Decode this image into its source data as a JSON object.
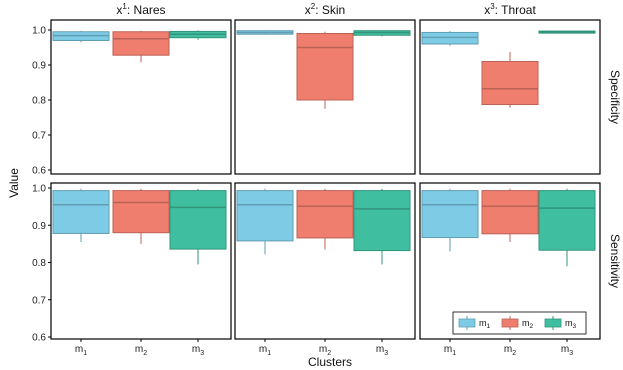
{
  "chart_data": {
    "type": "boxplot",
    "ylabel": "Value",
    "xlabel": "Clusters",
    "ylim": [
      0.6,
      1.0
    ],
    "yticks": [
      "0.6",
      "0.7",
      "0.8",
      "0.9",
      "1.0"
    ],
    "columns": [
      {
        "base": "x",
        "sup": "1",
        "name": ": Nares"
      },
      {
        "base": "x",
        "sup": "2",
        "name": ": Skin"
      },
      {
        "base": "x",
        "sup": "3",
        "name": ": Throat"
      }
    ],
    "rows": [
      "Specificity",
      "Sensitivity"
    ],
    "clusters": [
      {
        "base": "m",
        "sub": "1",
        "color": "#7ecbe6"
      },
      {
        "base": "m",
        "sub": "2",
        "color": "#f07e6e"
      },
      {
        "base": "m",
        "sub": "3",
        "color": "#3fbf9f"
      }
    ],
    "legend_position": "bottom-right",
    "boxes": [
      {
        "row": "Specificity",
        "column": "Nares",
        "cluster": "m1",
        "min": 0.965,
        "q1": 0.97,
        "median": 0.984,
        "q3": 0.995,
        "max": 0.998
      },
      {
        "row": "Specificity",
        "column": "Nares",
        "cluster": "m2",
        "min": 0.908,
        "q1": 0.928,
        "median": 0.975,
        "q3": 0.995,
        "max": 0.998
      },
      {
        "row": "Specificity",
        "column": "Nares",
        "cluster": "m3",
        "min": 0.972,
        "q1": 0.978,
        "median": 0.988,
        "q3": 0.996,
        "max": 0.999
      },
      {
        "row": "Specificity",
        "column": "Skin",
        "cluster": "m1",
        "min": 0.986,
        "q1": 0.988,
        "median": 0.993,
        "q3": 0.998,
        "max": 0.999
      },
      {
        "row": "Specificity",
        "column": "Skin",
        "cluster": "m2",
        "min": 0.775,
        "q1": 0.8,
        "median": 0.95,
        "q3": 0.99,
        "max": 0.995
      },
      {
        "row": "Specificity",
        "column": "Skin",
        "cluster": "m3",
        "min": 0.982,
        "q1": 0.985,
        "median": 0.993,
        "q3": 0.998,
        "max": 0.999
      },
      {
        "row": "Specificity",
        "column": "Throat",
        "cluster": "m1",
        "min": 0.955,
        "q1": 0.96,
        "median": 0.979,
        "q3": 0.993,
        "max": 0.997
      },
      {
        "row": "Specificity",
        "column": "Throat",
        "cluster": "m2",
        "min": 0.778,
        "q1": 0.787,
        "median": 0.832,
        "q3": 0.91,
        "max": 0.937
      },
      {
        "row": "Specificity",
        "column": "Throat",
        "cluster": "m3",
        "min": 0.99,
        "q1": 0.991,
        "median": 0.994,
        "q3": 0.997,
        "max": 0.998
      },
      {
        "row": "Sensitivity",
        "column": "Nares",
        "cluster": "m1",
        "min": 0.855,
        "q1": 0.878,
        "median": 0.955,
        "q3": 0.993,
        "max": 0.998
      },
      {
        "row": "Sensitivity",
        "column": "Nares",
        "cluster": "m2",
        "min": 0.85,
        "q1": 0.88,
        "median": 0.961,
        "q3": 0.993,
        "max": 0.998
      },
      {
        "row": "Sensitivity",
        "column": "Nares",
        "cluster": "m3",
        "min": 0.795,
        "q1": 0.836,
        "median": 0.948,
        "q3": 0.993,
        "max": 0.998
      },
      {
        "row": "Sensitivity",
        "column": "Skin",
        "cluster": "m1",
        "min": 0.822,
        "q1": 0.858,
        "median": 0.955,
        "q3": 0.993,
        "max": 0.998
      },
      {
        "row": "Sensitivity",
        "column": "Skin",
        "cluster": "m2",
        "min": 0.835,
        "q1": 0.866,
        "median": 0.951,
        "q3": 0.993,
        "max": 0.998
      },
      {
        "row": "Sensitivity",
        "column": "Skin",
        "cluster": "m3",
        "min": 0.795,
        "q1": 0.832,
        "median": 0.944,
        "q3": 0.993,
        "max": 0.998
      },
      {
        "row": "Sensitivity",
        "column": "Throat",
        "cluster": "m1",
        "min": 0.83,
        "q1": 0.867,
        "median": 0.955,
        "q3": 0.993,
        "max": 0.998
      },
      {
        "row": "Sensitivity",
        "column": "Throat",
        "cluster": "m2",
        "min": 0.855,
        "q1": 0.877,
        "median": 0.951,
        "q3": 0.993,
        "max": 0.998
      },
      {
        "row": "Sensitivity",
        "column": "Throat",
        "cluster": "m3",
        "min": 0.79,
        "q1": 0.833,
        "median": 0.946,
        "q3": 0.993,
        "max": 0.998
      }
    ]
  }
}
